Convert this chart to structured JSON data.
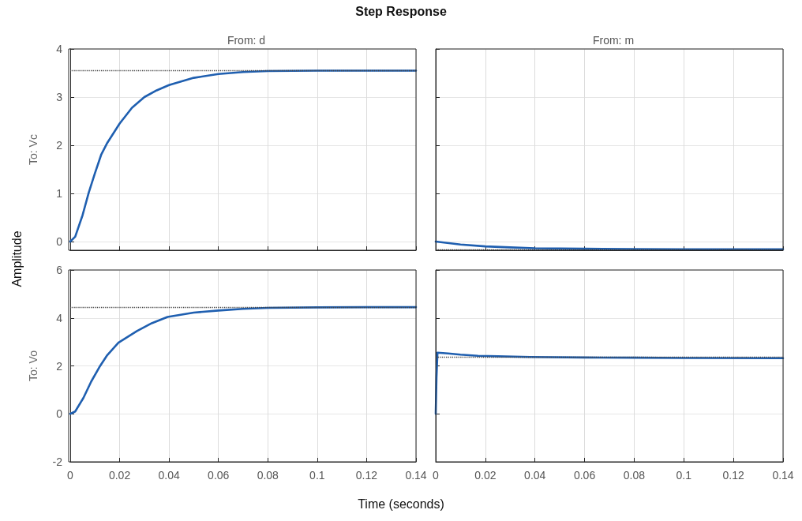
{
  "chart_data": [
    {
      "type": "line",
      "title": "From: d",
      "ylabel": "To: Vc",
      "xlim": [
        0,
        0.14
      ],
      "xticks": [
        0,
        0.02,
        0.04,
        0.06,
        0.08,
        0.1,
        0.12,
        0.14
      ],
      "ylim": [
        -0.18,
        4
      ],
      "yticks": [
        0,
        1,
        2,
        3,
        4
      ],
      "grid": true,
      "tick_labels": "y",
      "marker": "none",
      "line_style": "solid",
      "series": [
        {
          "color": "#1f5fb0",
          "x": [
            0,
            0.002,
            0.005,
            0.0075,
            0.01,
            0.0125,
            0.015,
            0.02,
            0.025,
            0.03,
            0.035,
            0.04,
            0.05,
            0.06,
            0.07,
            0.08,
            0.1,
            0.12,
            0.14
          ],
          "values": [
            0,
            0.1,
            0.55,
            1.02,
            1.42,
            1.8,
            2.05,
            2.45,
            2.78,
            3.0,
            3.14,
            3.25,
            3.4,
            3.48,
            3.52,
            3.54,
            3.55,
            3.55,
            3.55
          ]
        }
      ],
      "ref_lines": [
        {
          "axis": "y",
          "value": 3.55,
          "color": "#444444",
          "line_style": "dotted"
        }
      ]
    },
    {
      "type": "line",
      "title": "From: m",
      "xlim": [
        0,
        0.14
      ],
      "xticks": [
        0,
        0.02,
        0.04,
        0.06,
        0.08,
        0.1,
        0.12,
        0.14
      ],
      "ylim": [
        -0.18,
        4
      ],
      "yticks": [
        0,
        1,
        2,
        3,
        4
      ],
      "grid": true,
      "tick_labels": false,
      "marker": "none",
      "line_style": "solid",
      "series": [
        {
          "color": "#1f5fb0",
          "x": [
            0,
            0.01,
            0.02,
            0.03,
            0.04,
            0.06,
            0.08,
            0.1,
            0.14
          ],
          "values": [
            0,
            -0.06,
            -0.1,
            -0.12,
            -0.14,
            -0.15,
            -0.155,
            -0.16,
            -0.16
          ]
        }
      ],
      "ref_lines": [
        {
          "axis": "y",
          "value": -0.17,
          "color": "#444444",
          "line_style": "dotted"
        }
      ]
    },
    {
      "type": "line",
      "ylabel": "To: Vo",
      "xlim": [
        0,
        0.14
      ],
      "xticks": [
        0,
        0.02,
        0.04,
        0.06,
        0.08,
        0.1,
        0.12,
        0.14
      ],
      "ylim": [
        -2,
        6
      ],
      "yticks": [
        -2,
        0,
        2,
        4,
        6
      ],
      "grid": true,
      "marker": "none",
      "line_style": "solid",
      "series": [
        {
          "color": "#1f5fb0",
          "x": [
            0,
            0.002,
            0.0053,
            0.0085,
            0.0118,
            0.015,
            0.0195,
            0.027,
            0.033,
            0.0394,
            0.05,
            0.06,
            0.07,
            0.08,
            0.1,
            0.12,
            0.14
          ],
          "values": [
            0,
            0.1,
            0.66,
            1.35,
            1.95,
            2.45,
            2.97,
            3.45,
            3.78,
            4.04,
            4.22,
            4.31,
            4.38,
            4.42,
            4.44,
            4.45,
            4.45
          ]
        }
      ],
      "ref_lines": [
        {
          "axis": "y",
          "value": 4.45,
          "color": "#444444",
          "line_style": "dotted"
        }
      ]
    },
    {
      "type": "line",
      "xlim": [
        0,
        0.14
      ],
      "xticks": [
        0,
        0.02,
        0.04,
        0.06,
        0.08,
        0.1,
        0.12,
        0.14
      ],
      "ylim": [
        -2,
        6
      ],
      "yticks": [
        -2,
        0,
        2,
        4,
        6
      ],
      "grid": true,
      "tick_labels": "x",
      "marker": "none",
      "line_style": "solid",
      "series": [
        {
          "color": "#1f5fb0",
          "x": [
            0,
            0.0003,
            0.0007,
            0.005,
            0.01,
            0.017,
            0.025,
            0.038,
            0.06,
            0.08,
            0.1,
            0.14
          ],
          "values": [
            0,
            1.5,
            2.55,
            2.52,
            2.47,
            2.42,
            2.4,
            2.37,
            2.35,
            2.34,
            2.33,
            2.32
          ]
        }
      ],
      "ref_lines": [
        {
          "axis": "y",
          "value": 2.36,
          "color": "#444444",
          "line_style": "dotted"
        }
      ]
    },
    {
      "type": "other",
      "title": "Step Response",
      "xlabel": "Time (seconds)",
      "ylabel": "Amplitude"
    }
  ]
}
